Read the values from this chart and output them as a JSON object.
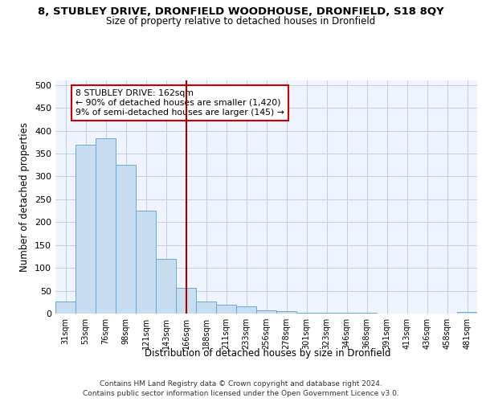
{
  "title": "8, STUBLEY DRIVE, DRONFIELD WOODHOUSE, DRONFIELD, S18 8QY",
  "subtitle": "Size of property relative to detached houses in Dronfield",
  "xlabel": "Distribution of detached houses by size in Dronfield",
  "ylabel": "Number of detached properties",
  "categories": [
    "31sqm",
    "53sqm",
    "76sqm",
    "98sqm",
    "121sqm",
    "143sqm",
    "166sqm",
    "188sqm",
    "211sqm",
    "233sqm",
    "256sqm",
    "278sqm",
    "301sqm",
    "323sqm",
    "346sqm",
    "368sqm",
    "391sqm",
    "413sqm",
    "436sqm",
    "458sqm",
    "481sqm"
  ],
  "values": [
    27,
    370,
    383,
    325,
    225,
    120,
    57,
    27,
    20,
    15,
    7,
    5,
    2,
    1,
    1,
    1,
    0,
    0,
    0,
    0,
    3
  ],
  "bar_color": "#c9ddf0",
  "bar_edge_color": "#6aaad4",
  "vline_color": "#aa0000",
  "annotation_line1": "8 STUBLEY DRIVE: 162sqm",
  "annotation_line2": "← 90% of detached houses are smaller (1,420)",
  "annotation_line3": "9% of semi-detached houses are larger (145) →",
  "annotation_box_color": "#cc0000",
  "ylim": [
    0,
    510
  ],
  "yticks": [
    0,
    50,
    100,
    150,
    200,
    250,
    300,
    350,
    400,
    450,
    500
  ],
  "footer_line1": "Contains HM Land Registry data © Crown copyright and database right 2024.",
  "footer_line2": "Contains public sector information licensed under the Open Government Licence v3.0.",
  "bg_color": "#f0f4ff",
  "grid_color": "#c0cfe8"
}
